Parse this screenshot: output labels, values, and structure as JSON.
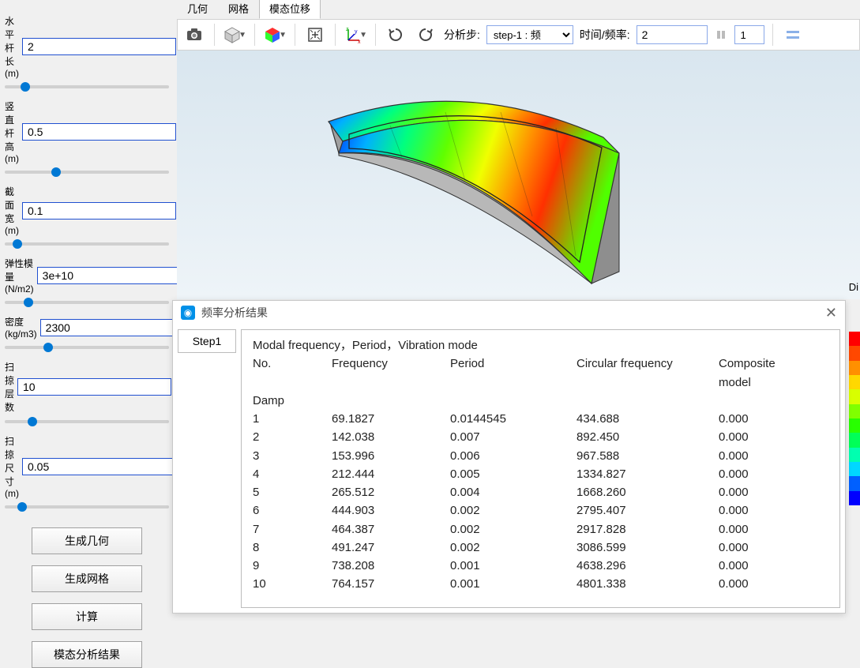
{
  "sidebar": {
    "params": [
      {
        "label": "水平杆长(m)",
        "value": "2",
        "slider": 0.1
      },
      {
        "label": "竖直杆高(m)",
        "value": "0.5",
        "slider": 0.3
      },
      {
        "label": "截面宽(m)",
        "value": "0.1",
        "slider": 0.05
      },
      {
        "label": "弹性模量(N/m2)",
        "value": "3e+10",
        "slider": 0.12
      },
      {
        "label": "密度(kg/m3)",
        "value": "2300",
        "slider": 0.25
      },
      {
        "label": "扫掠层数",
        "value": "10",
        "slider": 0.15
      },
      {
        "label": "扫掠尺寸(m)",
        "value": "0.05",
        "slider": 0.08
      }
    ],
    "buttons": [
      "生成几何",
      "生成网格",
      "计算",
      "模态分析结果"
    ]
  },
  "tabs": {
    "items": [
      "几何",
      "网格",
      "模态位移"
    ],
    "active": 2
  },
  "toolbar": {
    "analysis_step_label": "分析步:",
    "step_select": "step-1 : 频",
    "time_freq_label": "时间/频率:",
    "time_freq_value": "2",
    "spin_value": "1"
  },
  "di_label": "Di",
  "result_window": {
    "title": "频率分析结果",
    "step_tab": "Step1",
    "header_line": "Modal frequency，Period，Vibration mode",
    "col_labels": {
      "no": "No.",
      "freq": "Frequency",
      "period": "Period",
      "circ": "Circular frequency",
      "cmodel": "Composite model"
    },
    "damp_label": "Damp",
    "rows": [
      {
        "no": "1",
        "freq": "69.1827",
        "period": "0.0144545",
        "circ": "434.688",
        "damp": "0.000"
      },
      {
        "no": "2",
        "freq": "142.038",
        "period": "0.007",
        "circ": "892.450",
        "damp": "0.000"
      },
      {
        "no": "3",
        "freq": "153.996",
        "period": "0.006",
        "circ": "967.588",
        "damp": "0.000"
      },
      {
        "no": "4",
        "freq": "212.444",
        "period": "0.005",
        "circ": "1334.827",
        "damp": "0.000"
      },
      {
        "no": "5",
        "freq": "265.512",
        "period": "0.004",
        "circ": "1668.260",
        "damp": "0.000"
      },
      {
        "no": "6",
        "freq": "444.903",
        "period": "0.002",
        "circ": "2795.407",
        "damp": "0.000"
      },
      {
        "no": "7",
        "freq": "464.387",
        "period": "0.002",
        "circ": "2917.828",
        "damp": "0.000"
      },
      {
        "no": "8",
        "freq": "491.247",
        "period": "0.002",
        "circ": "3086.599",
        "damp": "0.000"
      },
      {
        "no": "9",
        "freq": "738.208",
        "period": "0.001",
        "circ": "4638.296",
        "damp": "0.000"
      },
      {
        "no": "10",
        "freq": "764.157",
        "period": "0.001",
        "circ": "4801.338",
        "damp": "0.000"
      }
    ]
  },
  "colorbar": [
    "#ff0000",
    "#ff4800",
    "#ff9000",
    "#ffd800",
    "#d8ff00",
    "#80ff00",
    "#28ff00",
    "#00ff58",
    "#00ffb0",
    "#00d8ff",
    "#0060ff",
    "#0000ff"
  ],
  "model_svg": {
    "bg_top": "#d9e6ef",
    "bg_bot": "#eef4f8",
    "gray": "#9a9a9a",
    "gray_dark": "#7d7d7d",
    "outline": "#2b2b2b"
  }
}
